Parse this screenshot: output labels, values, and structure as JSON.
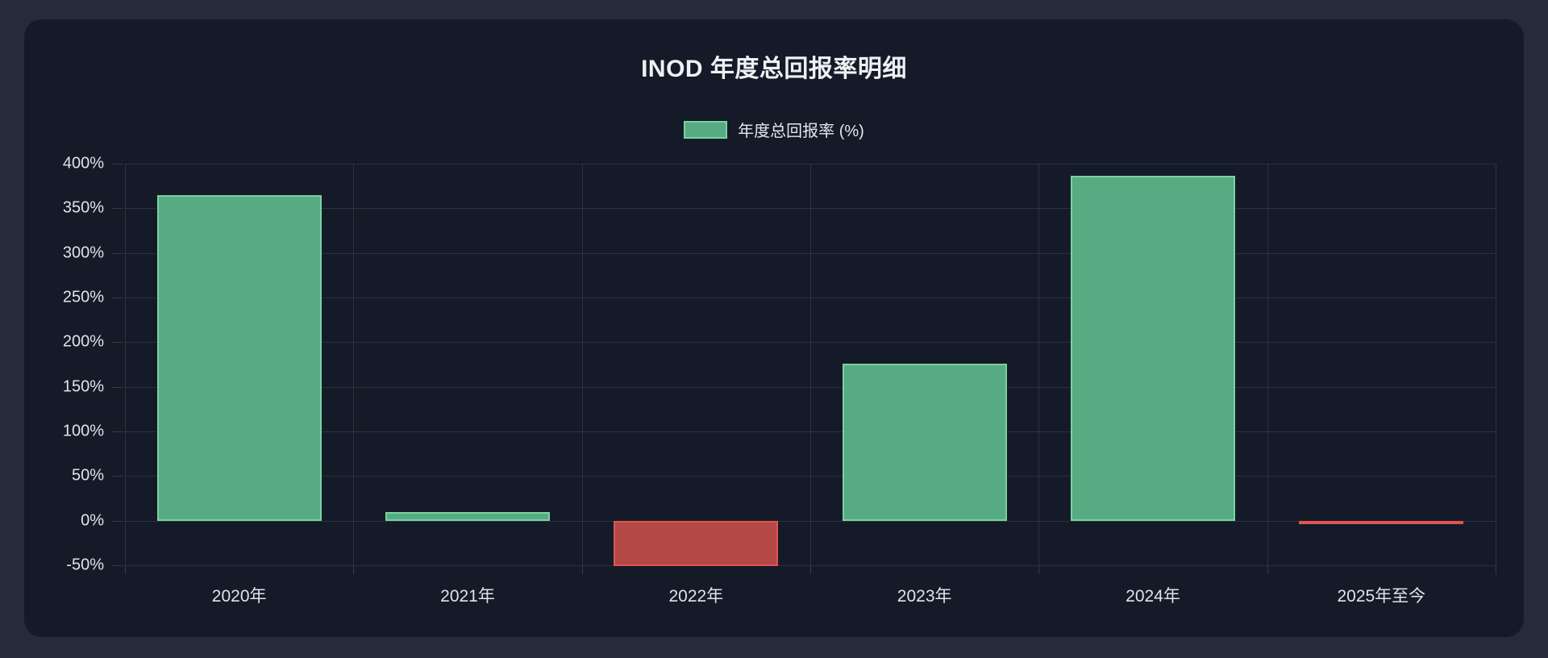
{
  "page": {
    "outer_background": "#252b3a",
    "card_background": "#151a29"
  },
  "chart": {
    "title": "INOD 年度总回报率明细",
    "legend": {
      "label": "年度总回报率 (%)",
      "swatch_fill": "#56ab82",
      "swatch_border": "#79d2a0"
    }
  },
  "chart_data": {
    "type": "bar",
    "title": "INOD 年度总回报率明细",
    "categories": [
      "2020年",
      "2021年",
      "2022年",
      "2023年",
      "2024年",
      "2025年至今"
    ],
    "series": [
      {
        "name": "年度总回报率 (%)",
        "values": [
          365,
          10,
          -51,
          176,
          386,
          -3
        ]
      }
    ],
    "values": [
      365,
      10,
      -51,
      176,
      386,
      -3
    ],
    "xlabel": "",
    "ylabel": "",
    "ylim": [
      -50,
      400
    ],
    "ytick_step": 50,
    "ytick_suffix": "%",
    "grid": true,
    "legend_position": "top",
    "colors": {
      "positive_fill": "#56ab82",
      "positive_border": "#79d2a0",
      "negative_fill": "#b44846",
      "negative_border": "#e1554e"
    }
  }
}
